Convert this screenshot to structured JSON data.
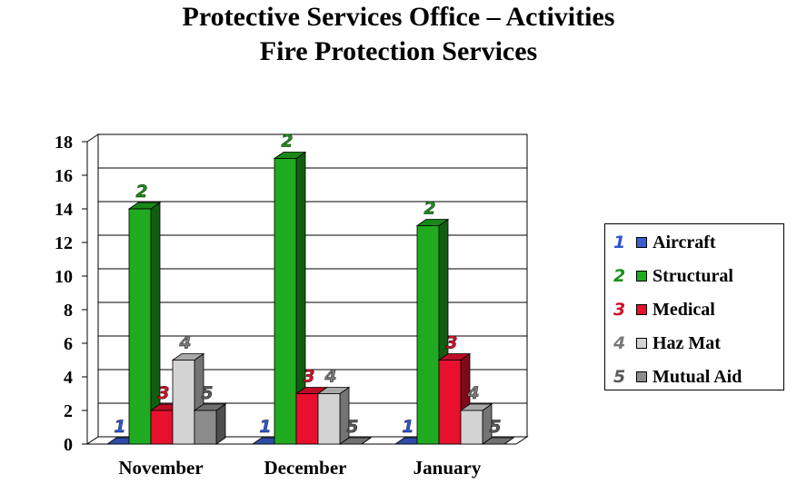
{
  "chart_data": {
    "type": "bar",
    "title": [
      "Protective Services Office – Activities",
      "Fire Protection Services"
    ],
    "categories": [
      "November",
      "December",
      "January"
    ],
    "ylim": [
      0,
      18
    ],
    "yticks": [
      "0",
      "2",
      "4",
      "6",
      "8",
      "10",
      "12",
      "14",
      "16",
      "18"
    ],
    "grid": true,
    "legend": "right",
    "series": [
      {
        "name": "Aircraft",
        "tag": "1",
        "color": "#3a5fcd",
        "values": [
          0,
          0,
          0
        ]
      },
      {
        "name": "Structural",
        "tag": "2",
        "color": "#1faa1f",
        "values": [
          14,
          17,
          13
        ]
      },
      {
        "name": "Medical",
        "tag": "3",
        "color": "#e8102e",
        "values": [
          2,
          3,
          5
        ]
      },
      {
        "name": "Haz Mat",
        "tag": "4",
        "color": "#d3d3d3",
        "values": [
          5,
          3,
          2
        ]
      },
      {
        "name": "Mutual Aid",
        "tag": "5",
        "color": "#8c8c8c",
        "values": [
          2,
          0,
          0
        ]
      }
    ],
    "tag_colors": [
      "#2f55d4",
      "#1a8f1a",
      "#d0102a",
      "#7a7a7a",
      "#5a5a5a"
    ]
  }
}
